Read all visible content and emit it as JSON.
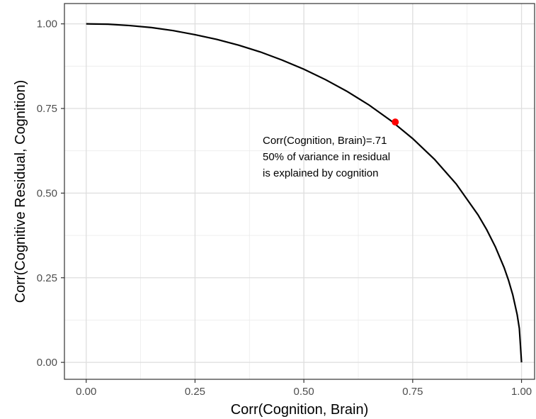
{
  "chart_data": {
    "type": "line",
    "title": "",
    "xlabel": "Corr(Cognition, Brain)",
    "ylabel": "Corr(Cognitive Residual, Cognition)",
    "xlim": [
      -0.05,
      1.03
    ],
    "ylim": [
      -0.05,
      1.06
    ],
    "x_ticks": [
      0.0,
      0.25,
      0.5,
      0.75,
      1.0
    ],
    "x_tick_labels": [
      "0.00",
      "0.25",
      "0.50",
      "0.75",
      "1.00"
    ],
    "y_ticks": [
      0.0,
      0.25,
      0.5,
      0.75,
      1.0
    ],
    "y_tick_labels": [
      "0.00",
      "0.25",
      "0.50",
      "0.75",
      "1.00"
    ],
    "grid": true,
    "series": [
      {
        "color": "#000000",
        "x": [
          0.0,
          0.05,
          0.1,
          0.15,
          0.2,
          0.25,
          0.3,
          0.35,
          0.4,
          0.45,
          0.5,
          0.55,
          0.6,
          0.65,
          0.7,
          0.75,
          0.8,
          0.85,
          0.9,
          0.92,
          0.94,
          0.96,
          0.97,
          0.98,
          0.99,
          0.995,
          1.0
        ],
        "y": [
          1.0,
          0.999,
          0.995,
          0.989,
          0.98,
          0.968,
          0.954,
          0.937,
          0.917,
          0.893,
          0.866,
          0.835,
          0.8,
          0.76,
          0.714,
          0.661,
          0.6,
          0.527,
          0.436,
          0.392,
          0.341,
          0.28,
          0.243,
          0.199,
          0.141,
          0.1,
          0.0
        ]
      }
    ],
    "highlight_point": {
      "x": 0.71,
      "y": 0.71,
      "color": "#ff0000"
    },
    "annotation": {
      "lines": [
        "Corr(Cognition, Brain)=.71",
        "50% of variance in residual",
        "is explained by cognition"
      ]
    }
  }
}
